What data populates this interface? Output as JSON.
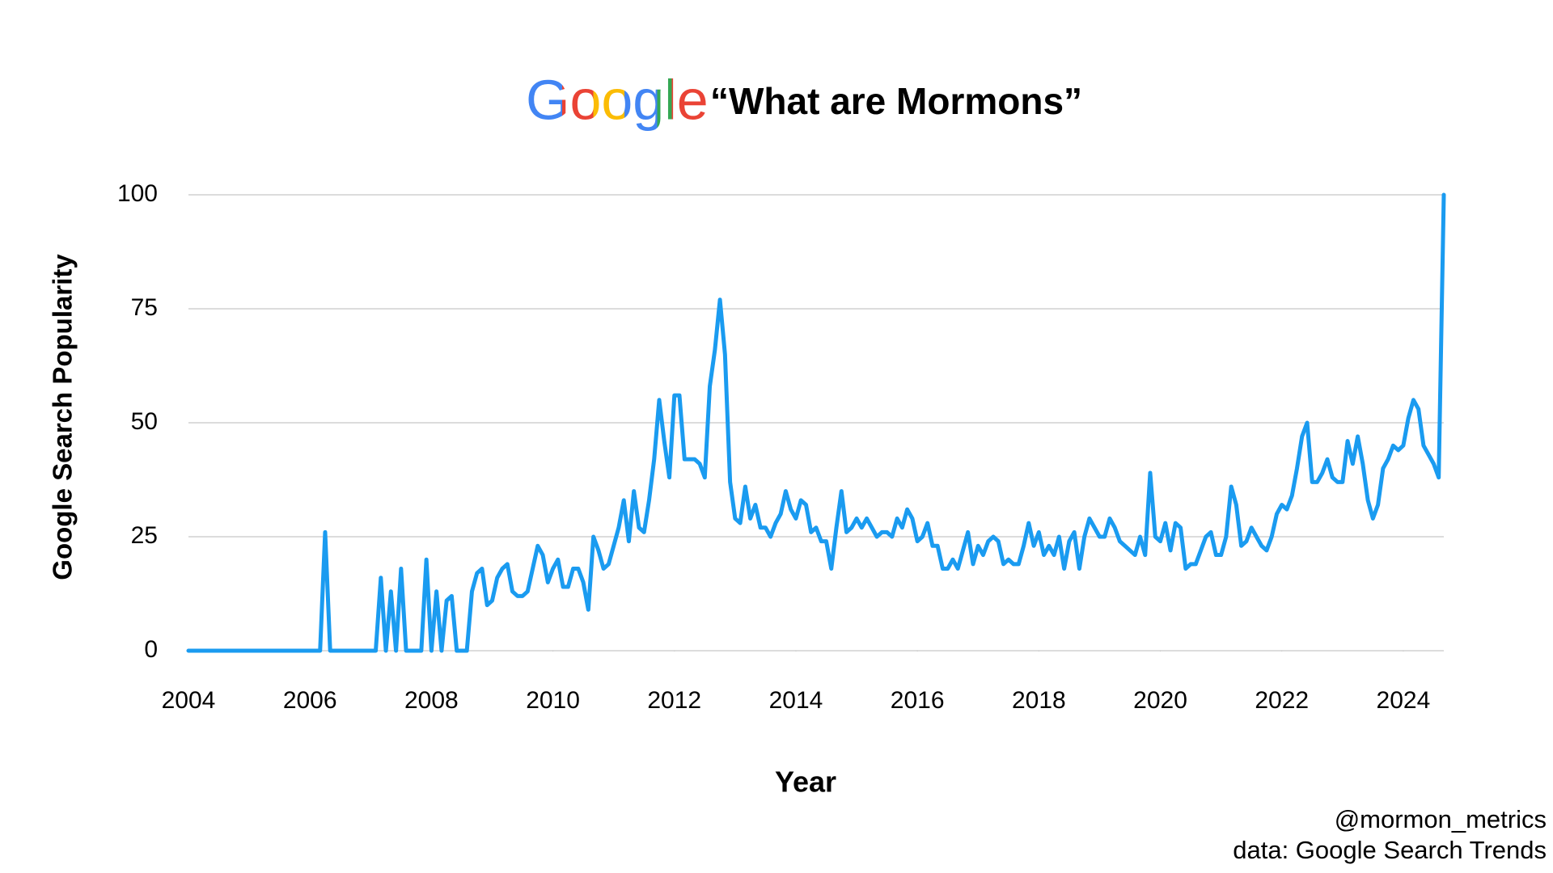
{
  "chart_data": {
    "type": "line",
    "logo": "Google",
    "title": "“What are Mormons”",
    "xlabel": "Year",
    "ylabel": "Google Search Popularity",
    "annotations": [
      "@mormon_metrics",
      "data: Google Search Trends"
    ],
    "color": "#1a9bf0",
    "grid": true,
    "xlim": [
      2004,
      2024.667
    ],
    "ylim": [
      0,
      100
    ],
    "xticks": [
      2004,
      2006,
      2008,
      2010,
      2012,
      2014,
      2016,
      2018,
      2020,
      2022,
      2024
    ],
    "yticks": [
      0,
      25,
      50,
      75,
      100
    ],
    "x": [
      2004,
      2004.083,
      2004.167,
      2004.25,
      2004.333,
      2004.417,
      2004.5,
      2004.583,
      2004.667,
      2004.75,
      2004.833,
      2004.917,
      2005,
      2005.083,
      2005.167,
      2005.25,
      2005.333,
      2005.417,
      2005.5,
      2005.583,
      2005.667,
      2005.75,
      2005.833,
      2005.917,
      2006,
      2006.083,
      2006.167,
      2006.25,
      2006.333,
      2006.417,
      2006.5,
      2006.583,
      2006.667,
      2006.75,
      2006.833,
      2006.917,
      2007,
      2007.083,
      2007.167,
      2007.25,
      2007.333,
      2007.417,
      2007.5,
      2007.583,
      2007.667,
      2007.75,
      2007.833,
      2007.917,
      2008,
      2008.083,
      2008.167,
      2008.25,
      2008.333,
      2008.417,
      2008.5,
      2008.583,
      2008.667,
      2008.75,
      2008.833,
      2008.917,
      2009,
      2009.083,
      2009.167,
      2009.25,
      2009.333,
      2009.417,
      2009.5,
      2009.583,
      2009.667,
      2009.75,
      2009.833,
      2009.917,
      2010,
      2010.083,
      2010.167,
      2010.25,
      2010.333,
      2010.417,
      2010.5,
      2010.583,
      2010.667,
      2010.75,
      2010.833,
      2010.917,
      2011,
      2011.083,
      2011.167,
      2011.25,
      2011.333,
      2011.417,
      2011.5,
      2011.583,
      2011.667,
      2011.75,
      2011.833,
      2011.917,
      2012,
      2012.083,
      2012.167,
      2012.25,
      2012.333,
      2012.417,
      2012.5,
      2012.583,
      2012.667,
      2012.75,
      2012.833,
      2012.917,
      2013,
      2013.083,
      2013.167,
      2013.25,
      2013.333,
      2013.417,
      2013.5,
      2013.583,
      2013.667,
      2013.75,
      2013.833,
      2013.917,
      2014,
      2014.083,
      2014.167,
      2014.25,
      2014.333,
      2014.417,
      2014.5,
      2014.583,
      2014.667,
      2014.75,
      2014.833,
      2014.917,
      2015,
      2015.083,
      2015.167,
      2015.25,
      2015.333,
      2015.417,
      2015.5,
      2015.583,
      2015.667,
      2015.75,
      2015.833,
      2015.917,
      2016,
      2016.083,
      2016.167,
      2016.25,
      2016.333,
      2016.417,
      2016.5,
      2016.583,
      2016.667,
      2016.75,
      2016.833,
      2016.917,
      2017,
      2017.083,
      2017.167,
      2017.25,
      2017.333,
      2017.417,
      2017.5,
      2017.583,
      2017.667,
      2017.75,
      2017.833,
      2017.917,
      2018,
      2018.083,
      2018.167,
      2018.25,
      2018.333,
      2018.417,
      2018.5,
      2018.583,
      2018.667,
      2018.75,
      2018.833,
      2018.917,
      2019,
      2019.083,
      2019.167,
      2019.25,
      2019.333,
      2019.417,
      2019.5,
      2019.583,
      2019.667,
      2019.75,
      2019.833,
      2019.917,
      2020,
      2020.083,
      2020.167,
      2020.25,
      2020.333,
      2020.417,
      2020.5,
      2020.583,
      2020.667,
      2020.75,
      2020.833,
      2020.917,
      2021,
      2021.083,
      2021.167,
      2021.25,
      2021.333,
      2021.417,
      2021.5,
      2021.583,
      2021.667,
      2021.75,
      2021.833,
      2021.917,
      2022,
      2022.083,
      2022.167,
      2022.25,
      2022.333,
      2022.417,
      2022.5,
      2022.583,
      2022.667,
      2022.75,
      2022.833,
      2022.917,
      2023,
      2023.083,
      2023.167,
      2023.25,
      2023.333,
      2023.417,
      2023.5,
      2023.583,
      2023.667,
      2023.75,
      2023.833,
      2023.917,
      2024,
      2024.083,
      2024.167,
      2024.25,
      2024.333,
      2024.417,
      2024.5,
      2024.583,
      2024.667
    ],
    "values": [
      0,
      0,
      0,
      0,
      0,
      0,
      0,
      0,
      0,
      0,
      0,
      0,
      0,
      0,
      0,
      0,
      0,
      0,
      0,
      0,
      0,
      0,
      0,
      0,
      0,
      0,
      0,
      26,
      0,
      0,
      0,
      0,
      0,
      0,
      0,
      0,
      0,
      0,
      16,
      0,
      13,
      0,
      18,
      0,
      0,
      0,
      0,
      20,
      0,
      13,
      0,
      11,
      12,
      0,
      0,
      0,
      13,
      17,
      18,
      10,
      11,
      16,
      18,
      19,
      13,
      12,
      12,
      13,
      18,
      23,
      21,
      15,
      18,
      20,
      14,
      14,
      18,
      18,
      15,
      9,
      25,
      22,
      18,
      19,
      23,
      27,
      33,
      24,
      35,
      27,
      26,
      33,
      42,
      55,
      46,
      38,
      56,
      56,
      42,
      42,
      42,
      41,
      38,
      58,
      66,
      77,
      65,
      37,
      29,
      28,
      36,
      29,
      32,
      27,
      27,
      25,
      28,
      30,
      35,
      31,
      29,
      33,
      32,
      26,
      27,
      24,
      24,
      18,
      27,
      35,
      26,
      27,
      29,
      27,
      29,
      27,
      25,
      26,
      26,
      25,
      29,
      27,
      31,
      29,
      24,
      25,
      28,
      23,
      23,
      18,
      18,
      20,
      18,
      22,
      26,
      19,
      23,
      21,
      24,
      25,
      24,
      19,
      20,
      19,
      19,
      23,
      28,
      23,
      26,
      21,
      23,
      21,
      25,
      18,
      24,
      26,
      18,
      25,
      29,
      27,
      25,
      25,
      29,
      27,
      24,
      23,
      22,
      21,
      25,
      21,
      39,
      25,
      24,
      28,
      22,
      28,
      27,
      18,
      19,
      19,
      22,
      25,
      26,
      21,
      21,
      25,
      36,
      32,
      23,
      24,
      27,
      25,
      23,
      22,
      25,
      30,
      32,
      31,
      34,
      40,
      47,
      50,
      37,
      37,
      39,
      42,
      38,
      37,
      37,
      46,
      41,
      47,
      41,
      33,
      29,
      32,
      40,
      42,
      45,
      44,
      45,
      51,
      55,
      53,
      45,
      43,
      41,
      38,
      100
    ]
  }
}
